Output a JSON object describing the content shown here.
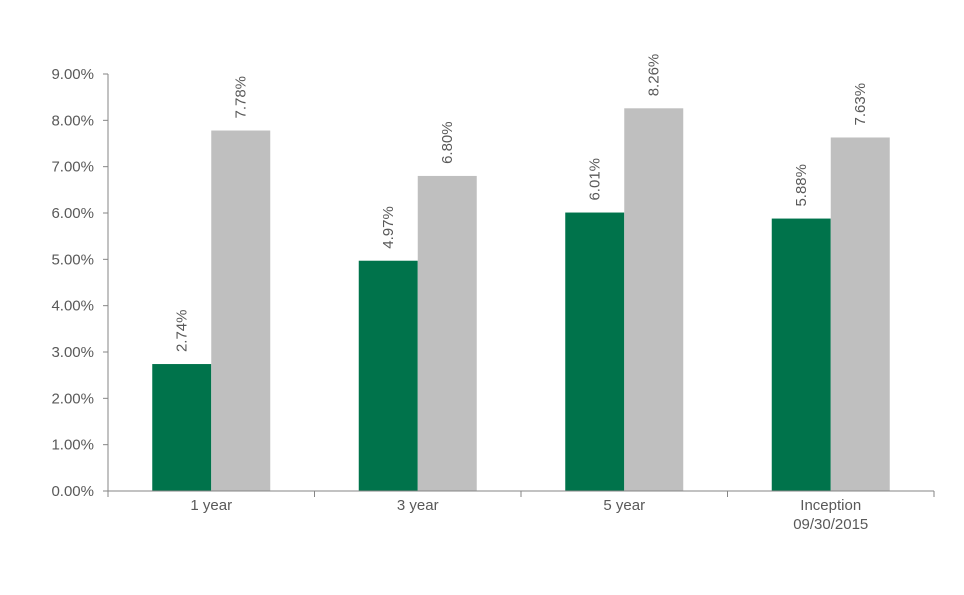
{
  "chart_data": {
    "type": "bar",
    "categories": [
      "1 year",
      "3 year",
      "5 year",
      "Inception\n09/30/2015"
    ],
    "series": [
      {
        "values": [
          2.74,
          4.97,
          6.01,
          5.88
        ],
        "labels": [
          "2.74%",
          "4.97%",
          "6.01%",
          "5.88%"
        ],
        "color": "#00734b"
      },
      {
        "values": [
          7.78,
          6.8,
          8.26,
          7.63
        ],
        "labels": [
          "7.78%",
          "6.80%",
          "8.26%",
          "7.63%"
        ],
        "color": "#bfbfbf"
      }
    ],
    "ylim": [
      0,
      9
    ],
    "yticks": [
      "0.00%",
      "1.00%",
      "2.00%",
      "3.00%",
      "4.00%",
      "5.00%",
      "6.00%",
      "7.00%",
      "8.00%",
      "9.00%"
    ],
    "grid": false,
    "legend": "none"
  }
}
